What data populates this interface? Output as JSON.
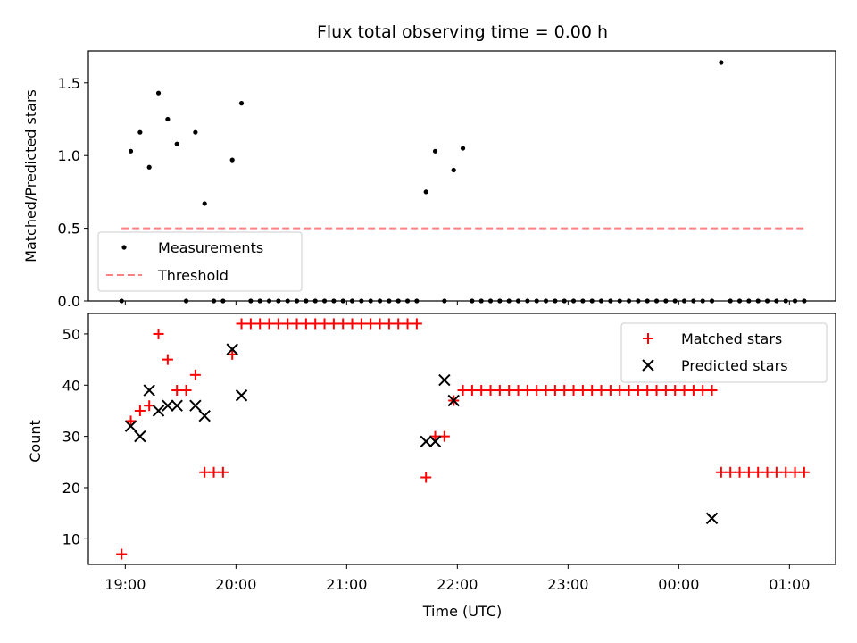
{
  "chart_data": [
    {
      "type": "scatter",
      "title": "Flux total observing time = 0.00 h",
      "xlabel": "",
      "ylabel": "Matched/Predicted stars",
      "xlim": [
        "18:40",
        "01:25"
      ],
      "ylim": [
        0,
        1.72
      ],
      "yticks": [
        0.0,
        0.5,
        1.0,
        1.5
      ],
      "ytick_labels": [
        "0.0",
        "0.5",
        "1.0",
        "1.5"
      ],
      "legend_position": "lower-left",
      "series": [
        {
          "name": "Measurements",
          "marker": "dot",
          "color": "#000000",
          "x": [
            "18:58",
            "19:03",
            "19:08",
            "19:13",
            "19:18",
            "19:23",
            "19:28",
            "19:33",
            "19:38",
            "19:43",
            "19:48",
            "19:53",
            "19:58",
            "20:03",
            "20:08",
            "20:13",
            "20:18",
            "20:23",
            "20:28",
            "20:33",
            "20:38",
            "20:43",
            "20:48",
            "20:53",
            "20:58",
            "21:03",
            "21:08",
            "21:13",
            "21:18",
            "21:23",
            "21:28",
            "21:33",
            "21:38",
            "21:43",
            "21:48",
            "21:53",
            "21:58",
            "22:03",
            "22:08",
            "22:13",
            "22:18",
            "22:23",
            "22:28",
            "22:33",
            "22:38",
            "22:43",
            "22:48",
            "22:53",
            "22:58",
            "23:03",
            "23:08",
            "23:13",
            "23:18",
            "23:23",
            "23:28",
            "23:33",
            "23:38",
            "23:43",
            "23:48",
            "23:53",
            "23:58",
            "00:03",
            "00:08",
            "00:13",
            "00:18",
            "00:23",
            "00:28",
            "00:33",
            "00:38",
            "00:43",
            "00:48",
            "00:53",
            "00:58",
            "01:03",
            "01:08"
          ],
          "y": [
            0.0,
            1.03,
            1.16,
            0.92,
            1.43,
            1.25,
            1.08,
            0.0,
            1.16,
            0.67,
            0.0,
            0.0,
            0.97,
            1.36,
            0.0,
            0.0,
            0.0,
            0.0,
            0.0,
            0.0,
            0.0,
            0.0,
            0.0,
            0.0,
            0.0,
            0.0,
            0.0,
            0.0,
            0.0,
            0.0,
            0.0,
            0.0,
            0.0,
            0.75,
            1.03,
            0.0,
            0.9,
            1.05,
            0.0,
            0.0,
            0.0,
            0.0,
            0.0,
            0.0,
            0.0,
            0.0,
            0.0,
            0.0,
            0.0,
            0.0,
            0.0,
            0.0,
            0.0,
            0.0,
            0.0,
            0.0,
            0.0,
            0.0,
            0.0,
            0.0,
            0.0,
            0.0,
            0.0,
            0.0,
            0.0,
            1.64,
            0.0,
            0.0,
            0.0,
            0.0,
            0.0,
            0.0,
            0.0,
            0.0,
            0.0
          ]
        },
        {
          "name": "Threshold",
          "marker": "dashed-line",
          "color": "#ff8080",
          "x": [
            "18:58",
            "01:08"
          ],
          "y": [
            0.5,
            0.5
          ]
        }
      ]
    },
    {
      "type": "scatter",
      "title": "",
      "xlabel": "Time (UTC)",
      "ylabel": "Count",
      "xlim": [
        "18:40",
        "01:25"
      ],
      "ylim": [
        5,
        54
      ],
      "yticks": [
        10,
        20,
        30,
        40,
        50
      ],
      "ytick_labels": [
        "10",
        "20",
        "30",
        "40",
        "50"
      ],
      "xticks": [
        "19:00",
        "20:00",
        "21:00",
        "22:00",
        "23:00",
        "00:00",
        "01:00"
      ],
      "legend_position": "upper-right",
      "series": [
        {
          "name": "Matched stars",
          "marker": "plus",
          "color": "#ff0000",
          "x": [
            "18:58",
            "19:03",
            "19:08",
            "19:13",
            "19:18",
            "19:23",
            "19:28",
            "19:33",
            "19:38",
            "19:43",
            "19:48",
            "19:53",
            "19:58",
            "20:03",
            "20:08",
            "20:13",
            "20:18",
            "20:23",
            "20:28",
            "20:33",
            "20:38",
            "20:43",
            "20:48",
            "20:53",
            "20:58",
            "21:03",
            "21:08",
            "21:13",
            "21:18",
            "21:23",
            "21:28",
            "21:33",
            "21:38",
            "21:43",
            "21:48",
            "21:53",
            "21:58",
            "22:03",
            "22:08",
            "22:13",
            "22:18",
            "22:23",
            "22:28",
            "22:33",
            "22:38",
            "22:43",
            "22:48",
            "22:53",
            "22:58",
            "23:03",
            "23:08",
            "23:13",
            "23:18",
            "23:23",
            "23:28",
            "23:33",
            "23:38",
            "23:43",
            "23:48",
            "23:53",
            "23:58",
            "00:03",
            "00:08",
            "00:13",
            "00:18",
            "00:23",
            "00:28",
            "00:33",
            "00:38",
            "00:43",
            "00:48",
            "00:53",
            "00:58",
            "01:03",
            "01:08"
          ],
          "y": [
            7,
            33,
            35,
            36,
            50,
            45,
            39,
            39,
            42,
            23,
            23,
            23,
            46,
            52,
            52,
            52,
            52,
            52,
            52,
            52,
            52,
            52,
            52,
            52,
            52,
            52,
            52,
            52,
            52,
            52,
            52,
            52,
            52,
            22,
            30,
            30,
            37,
            39,
            39,
            39,
            39,
            39,
            39,
            39,
            39,
            39,
            39,
            39,
            39,
            39,
            39,
            39,
            39,
            39,
            39,
            39,
            39,
            39,
            39,
            39,
            39,
            39,
            39,
            39,
            39,
            23,
            23,
            23,
            23,
            23,
            23,
            23,
            23,
            23,
            23
          ]
        },
        {
          "name": "Predicted stars",
          "marker": "x",
          "color": "#000000",
          "x": [
            "19:03",
            "19:08",
            "19:13",
            "19:18",
            "19:23",
            "19:28",
            "19:38",
            "19:43",
            "19:58",
            "20:03",
            "21:43",
            "21:48",
            "21:53",
            "21:58",
            "00:18"
          ],
          "y": [
            32,
            30,
            39,
            35,
            36,
            36,
            36,
            34,
            47,
            38,
            29,
            29,
            41,
            37,
            14
          ]
        }
      ]
    }
  ]
}
